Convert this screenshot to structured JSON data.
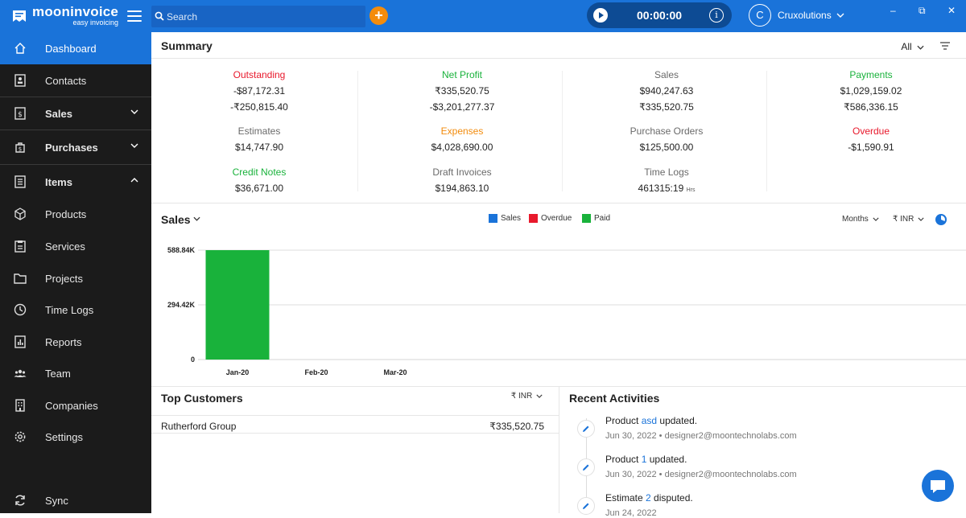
{
  "app": {
    "name": "mooninvoice",
    "tagline": "easy invoicing"
  },
  "topbar": {
    "search_placeholder": "Search",
    "add_label": "+",
    "timer": "00:00:00",
    "company_initial": "C",
    "company_name": "Cruxolutions",
    "minimize": "–",
    "maximize": "⧉",
    "close": "✕"
  },
  "sidebar": {
    "items": [
      {
        "label": "Dashboard",
        "icon": "home-icon",
        "active": true
      },
      {
        "label": "Contacts",
        "icon": "contacts-icon"
      },
      {
        "label": "Sales",
        "icon": "sales-icon"
      },
      {
        "label": "Purchases",
        "icon": "purchases-icon"
      },
      {
        "label": "Items",
        "icon": "items-icon"
      },
      {
        "label": "Products",
        "icon": "products-icon"
      },
      {
        "label": "Services",
        "icon": "services-icon"
      },
      {
        "label": "Projects",
        "icon": "projects-icon"
      },
      {
        "label": "Time Logs",
        "icon": "clock-icon"
      },
      {
        "label": "Reports",
        "icon": "reports-icon"
      },
      {
        "label": "Team",
        "icon": "team-icon"
      },
      {
        "label": "Companies",
        "icon": "companies-icon"
      },
      {
        "label": "Settings",
        "icon": "gear-icon"
      },
      {
        "label": "Sync",
        "icon": "sync-icon"
      }
    ]
  },
  "summary": {
    "title": "Summary",
    "filter": "All",
    "stats": {
      "outstanding": {
        "label": "Outstanding",
        "v1": "-$87,172.31",
        "v2": "-₹250,815.40"
      },
      "net_profit": {
        "label": "Net Profit",
        "v1": "₹335,520.75",
        "v2": "-$3,201,277.37"
      },
      "sales": {
        "label": "Sales",
        "v1": "$940,247.63",
        "v2": "₹335,520.75"
      },
      "payments": {
        "label": "Payments",
        "v1": "$1,029,159.02",
        "v2": "₹586,336.15"
      },
      "estimates": {
        "label": "Estimates",
        "v1": "$14,747.90"
      },
      "expenses": {
        "label": "Expenses",
        "v1": "$4,028,690.00"
      },
      "purchase_orders": {
        "label": "Purchase Orders",
        "v1": "$125,500.00"
      },
      "overdue": {
        "label": "Overdue",
        "v1": "-$1,590.91"
      },
      "credit_notes": {
        "label": "Credit Notes",
        "v1": "$36,671.00"
      },
      "draft_invoices": {
        "label": "Draft Invoices",
        "v1": "$194,863.10"
      },
      "time_logs": {
        "label": "Time Logs",
        "v1": "461315:19",
        "unit": "Hrs"
      }
    }
  },
  "sales_chart": {
    "title": "Sales",
    "period": "Months",
    "currency": "₹ INR",
    "colors": {
      "sales": "#1a73d9",
      "overdue": "#e8192c",
      "paid": "#19b23b"
    }
  },
  "chart_data": {
    "type": "bar",
    "categories": [
      "Jan-20",
      "Feb-20",
      "Mar-20"
    ],
    "series": [
      {
        "name": "Sales",
        "values": [
          0,
          0,
          0
        ]
      },
      {
        "name": "Overdue",
        "values": [
          0,
          0,
          0
        ]
      },
      {
        "name": "Paid",
        "values": [
          588840,
          0,
          0
        ]
      }
    ],
    "ylim": [
      0,
      588840
    ],
    "ytick_values": [
      0,
      294420,
      588840
    ],
    "ytick_labels": [
      "0",
      "294.42K",
      "588.84K"
    ],
    "legend": "top-center",
    "grid": true
  },
  "top_customers": {
    "title": "Top Customers",
    "currency": "₹ INR",
    "rows": [
      {
        "name": "Rutherford Group",
        "amount": "₹335,520.75"
      }
    ]
  },
  "recent_activities": {
    "title": "Recent Activities",
    "items": [
      {
        "pre": "Product ",
        "link": "asd",
        "post": " updated.",
        "meta": "Jun 30, 2022 • designer2@moontechnolabs.com"
      },
      {
        "pre": "Product ",
        "link": "1",
        "post": " updated.",
        "meta": "Jun 30, 2022 • designer2@moontechnolabs.com"
      },
      {
        "pre": "Estimate ",
        "link": "2",
        "post": " disputed.",
        "meta": "Jun 24, 2022"
      }
    ]
  }
}
